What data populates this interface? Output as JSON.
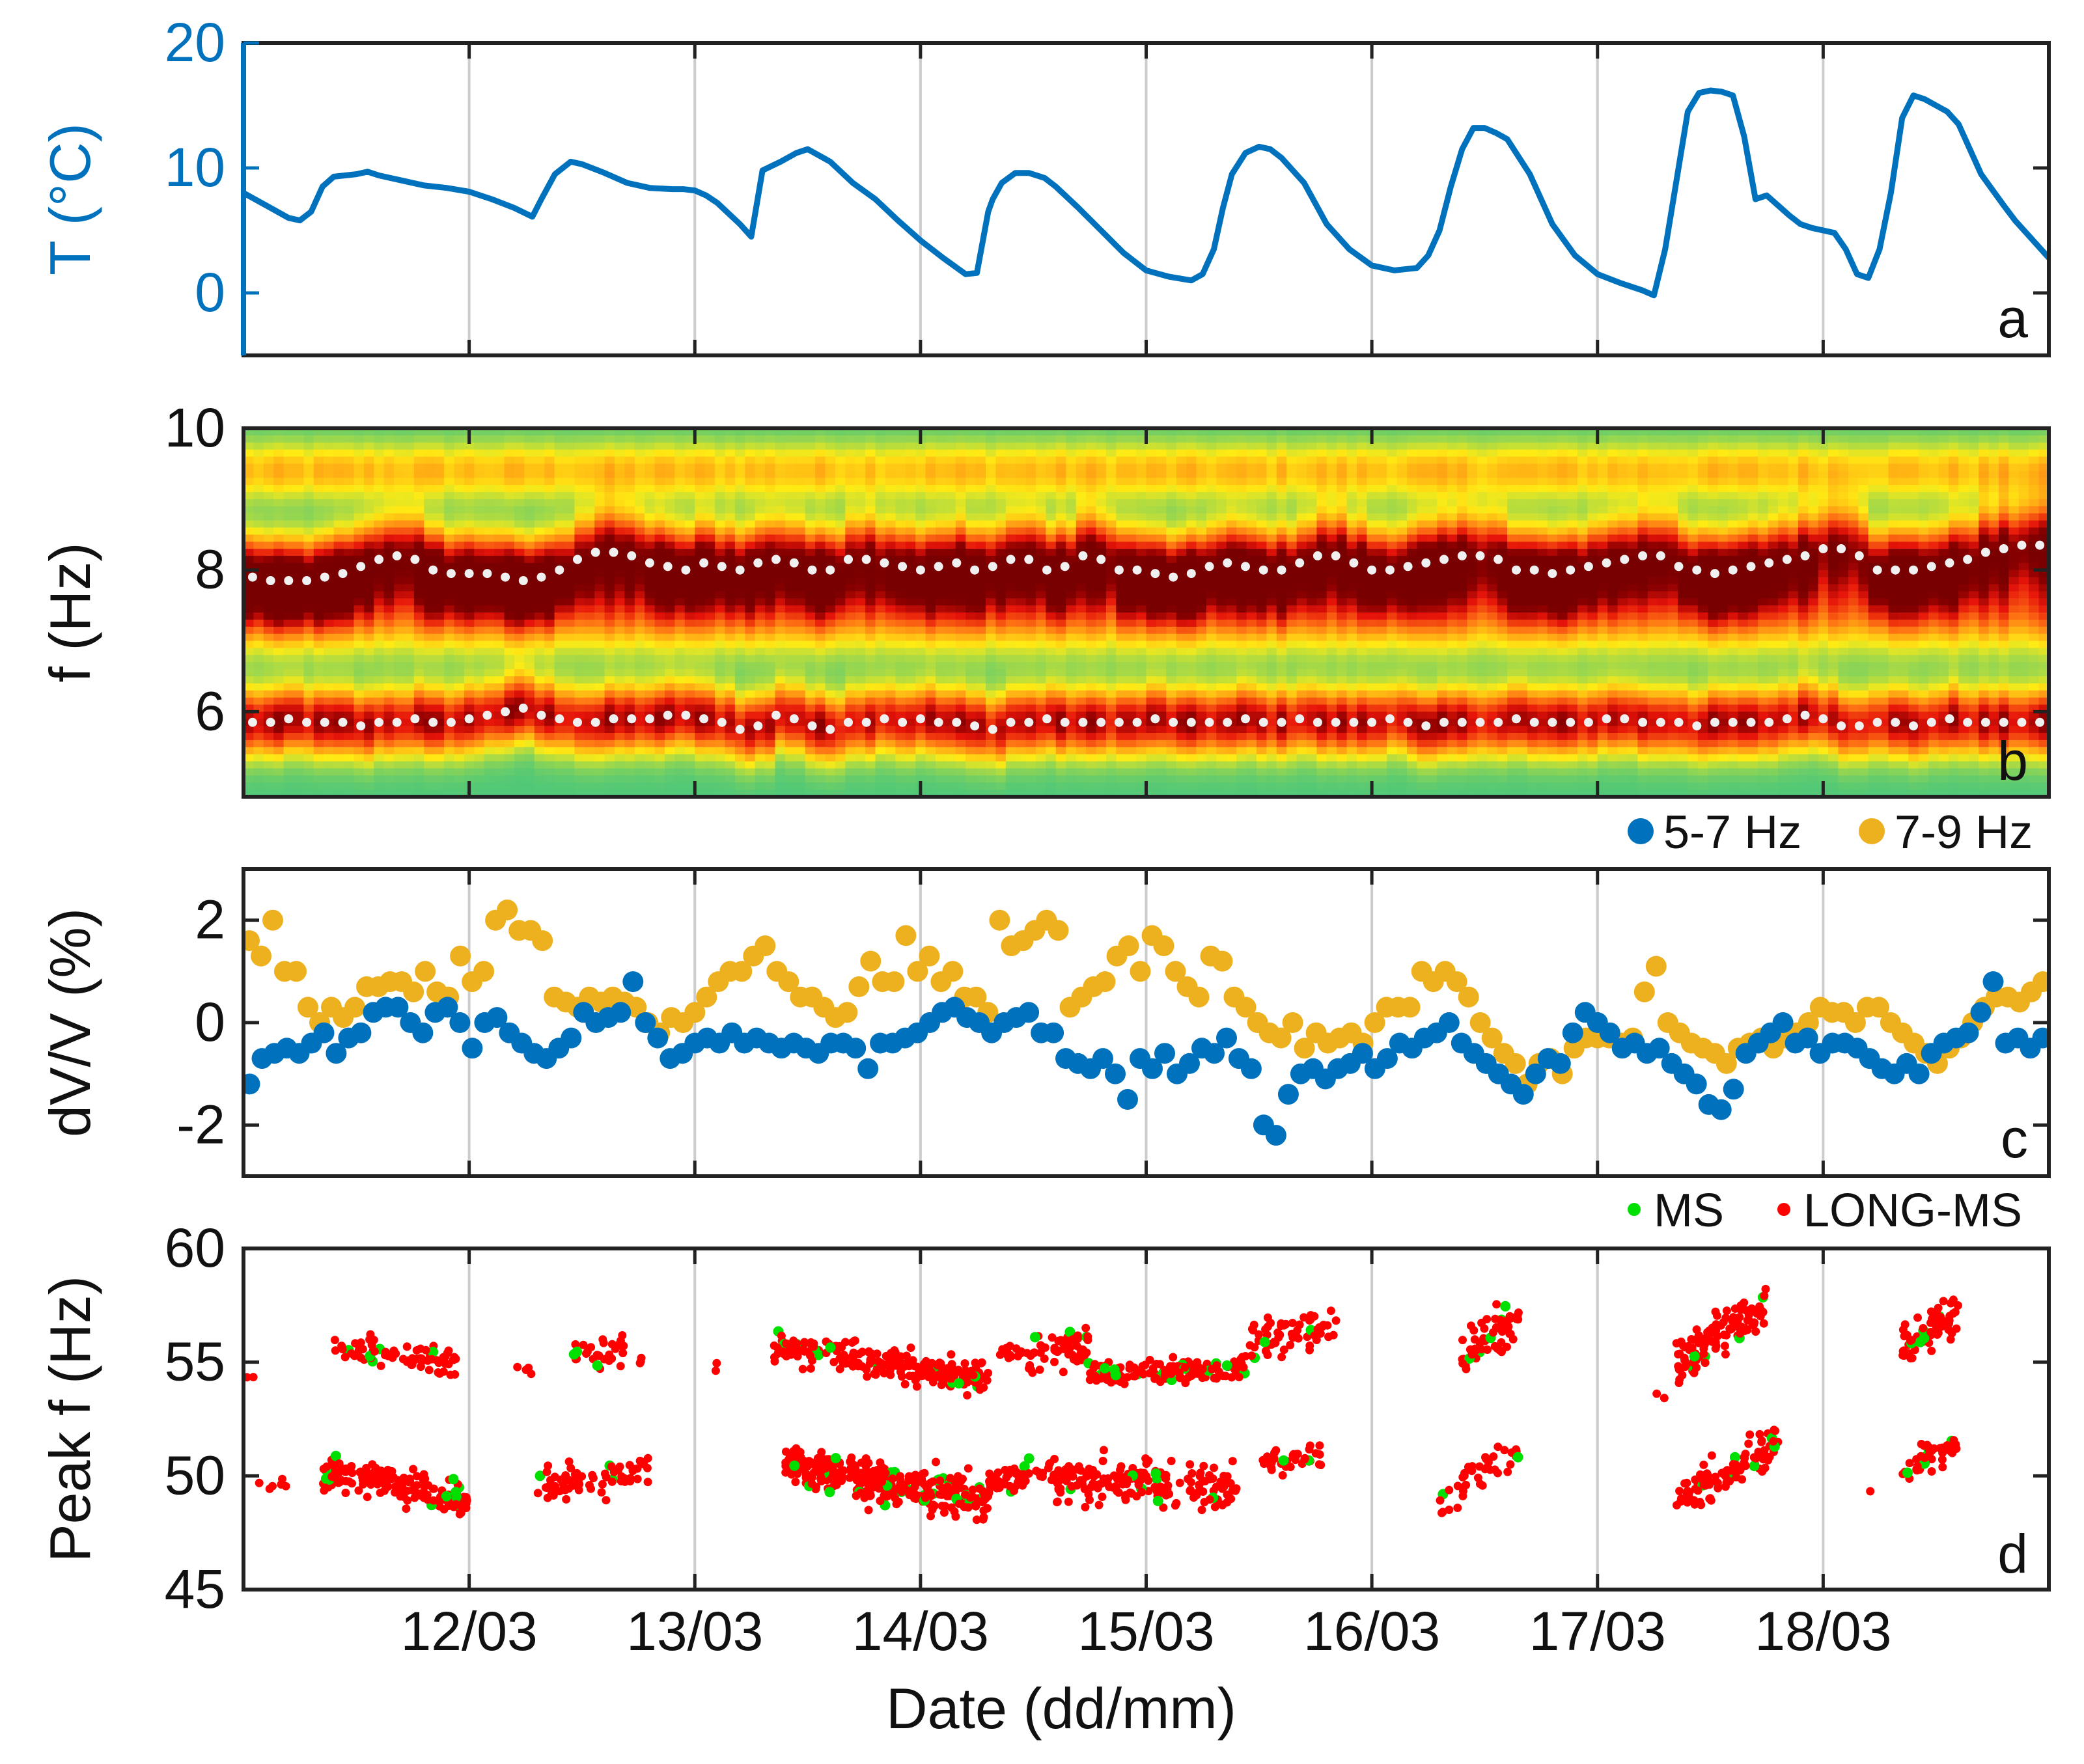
{
  "figure": {
    "xlabel": "Date (dd/mm)",
    "xticks": [
      "12/03",
      "13/03",
      "14/03",
      "15/03",
      "16/03",
      "17/03",
      "18/03"
    ],
    "day_range": [
      11.0,
      19.0
    ]
  },
  "colors": {
    "temperature": "#0072BD",
    "band_5_7": "#0072BD",
    "band_7_9": "#EDB120",
    "ms": "#00E000",
    "long_ms": "#FF0000",
    "grid": "#cccccc",
    "axis": "#222222"
  },
  "chart_data": [
    {
      "panel": "a",
      "type": "line",
      "ylabel": "T (°C)",
      "ylim": [
        -5,
        20
      ],
      "yticks": [
        0,
        10,
        20
      ],
      "series": [
        {
          "name": "Temperature",
          "x": [
            11.0,
            11.1,
            11.2,
            11.25,
            11.3,
            11.35,
            11.4,
            11.45,
            11.5,
            11.55,
            11.6,
            11.7,
            11.8,
            11.9,
            12.0,
            12.1,
            12.2,
            12.28,
            12.32,
            12.38,
            12.45,
            12.5,
            12.6,
            12.7,
            12.8,
            12.9,
            12.95,
            13.0,
            13.05,
            13.1,
            13.2,
            13.25,
            13.3,
            13.38,
            13.45,
            13.5,
            13.6,
            13.7,
            13.8,
            13.9,
            14.0,
            14.1,
            14.2,
            14.25,
            14.3,
            14.32,
            14.36,
            14.42,
            14.48,
            14.55,
            14.6,
            14.7,
            14.8,
            14.9,
            15.0,
            15.1,
            15.2,
            15.25,
            15.3,
            15.34,
            15.38,
            15.44,
            15.5,
            15.55,
            15.6,
            15.7,
            15.8,
            15.9,
            16.0,
            16.1,
            16.2,
            16.25,
            16.3,
            16.35,
            16.4,
            16.45,
            16.5,
            16.55,
            16.6,
            16.7,
            16.8,
            16.9,
            17.0,
            17.1,
            17.2,
            17.25,
            17.3,
            17.35,
            17.4,
            17.45,
            17.5,
            17.55,
            17.6,
            17.65,
            17.7,
            17.75,
            17.8,
            17.85,
            17.9,
            17.95,
            18.0,
            18.05,
            18.1,
            18.15,
            18.2,
            18.25,
            18.3,
            18.35,
            18.4,
            18.45,
            18.5,
            18.55,
            18.6,
            18.7,
            18.8,
            18.85,
            18.9,
            19.0
          ],
          "y": [
            8,
            7,
            6,
            5.8,
            6.5,
            8.5,
            9.3,
            9.4,
            9.5,
            9.7,
            9.4,
            9.0,
            8.6,
            8.4,
            8.1,
            7.5,
            6.8,
            6.1,
            7.5,
            9.5,
            10.5,
            10.3,
            9.6,
            8.8,
            8.4,
            8.3,
            8.3,
            8.2,
            7.8,
            7.2,
            5.5,
            4.5,
            9.8,
            10.5,
            11.2,
            11.5,
            10.5,
            8.8,
            7.5,
            5.8,
            4.2,
            2.8,
            1.5,
            1.6,
            6.5,
            7.5,
            8.8,
            9.6,
            9.6,
            9.2,
            8.5,
            6.8,
            5.0,
            3.2,
            1.8,
            1.3,
            1.0,
            1.5,
            3.5,
            6.8,
            9.5,
            11.2,
            11.7,
            11.5,
            10.8,
            8.8,
            5.5,
            3.5,
            2.2,
            1.8,
            2.0,
            3.0,
            5.0,
            8.5,
            11.5,
            13.2,
            13.2,
            12.8,
            12.3,
            9.5,
            5.5,
            3.0,
            1.5,
            0.8,
            0.2,
            -0.2,
            3.5,
            9.0,
            14.5,
            16.0,
            16.2,
            16.1,
            15.8,
            12.5,
            7.5,
            7.8,
            7.0,
            6.2,
            5.5,
            5.2,
            5.0,
            4.8,
            3.5,
            1.5,
            1.2,
            3.5,
            8.0,
            14.0,
            15.8,
            15.5,
            15.0,
            14.5,
            13.5,
            9.5,
            7.0,
            5.8,
            4.8,
            2.8
          ]
        }
      ],
      "annotation": "a"
    },
    {
      "panel": "b",
      "type": "heatmap",
      "ylabel": "f (Hz)",
      "ylim": [
        4.8,
        10
      ],
      "yticks": [
        6,
        8,
        10
      ],
      "colorscale": "spectral (green-yellow-red-darkred)",
      "series": [
        {
          "name": "peak 7-9 Hz",
          "values": [
            7.9,
            7.85,
            7.85,
            7.85,
            7.9,
            7.95,
            8.05,
            8.15,
            8.2,
            8.15,
            8.0,
            7.95,
            7.95,
            7.95,
            7.9,
            7.85,
            7.9,
            8.0,
            8.15,
            8.25,
            8.25,
            8.2,
            8.1,
            8.05,
            8.0,
            8.1,
            8.05,
            8.0,
            8.1,
            8.15,
            8.1,
            8.0,
            8.0,
            8.15,
            8.15,
            8.1,
            8.05,
            8.0,
            8.05,
            8.1,
            8.0,
            8.05,
            8.15,
            8.15,
            8.0,
            8.05,
            8.2,
            8.15,
            8.0,
            8.0,
            7.95,
            7.9,
            7.95,
            8.05,
            8.1,
            8.05,
            8.0,
            8.0,
            8.1,
            8.2,
            8.2,
            8.1,
            8.0,
            8.0,
            8.05,
            8.1,
            8.15,
            8.2,
            8.2,
            8.15,
            8.0,
            8.0,
            7.95,
            8.0,
            8.05,
            8.1,
            8.15,
            8.2,
            8.2,
            8.05,
            8.0,
            7.95,
            8.0,
            8.05,
            8.1,
            8.15,
            8.2,
            8.3,
            8.3,
            8.2,
            8.0,
            8.0,
            8.0,
            8.05,
            8.1,
            8.15,
            8.25,
            8.3,
            8.35,
            8.35
          ]
        },
        {
          "name": "peak 5-7 Hz",
          "values": [
            5.85,
            5.85,
            5.9,
            5.85,
            5.85,
            5.85,
            5.8,
            5.85,
            5.85,
            5.9,
            5.85,
            5.85,
            5.9,
            5.95,
            6.0,
            6.05,
            5.95,
            5.9,
            5.85,
            5.85,
            5.9,
            5.9,
            5.9,
            5.95,
            5.95,
            5.9,
            5.85,
            5.75,
            5.8,
            5.95,
            5.9,
            5.8,
            5.75,
            5.85,
            5.85,
            5.9,
            5.85,
            5.9,
            5.85,
            5.85,
            5.8,
            5.75,
            5.85,
            5.85,
            5.9,
            5.85,
            5.85,
            5.85,
            5.85,
            5.85,
            5.9,
            5.85,
            5.85,
            5.85,
            5.85,
            5.9,
            5.85,
            5.85,
            5.9,
            5.85,
            5.85,
            5.85,
            5.85,
            5.9,
            5.85,
            5.8,
            5.85,
            5.85,
            5.85,
            5.85,
            5.9,
            5.85,
            5.85,
            5.85,
            5.85,
            5.9,
            5.9,
            5.85,
            5.85,
            5.85,
            5.8,
            5.85,
            5.85,
            5.85,
            5.85,
            5.9,
            5.95,
            5.9,
            5.8,
            5.8,
            5.85,
            5.85,
            5.8,
            5.85,
            5.9,
            5.85,
            5.85,
            5.85,
            5.85,
            5.85
          ]
        }
      ],
      "annotation": "b"
    },
    {
      "panel": "c",
      "type": "scatter",
      "ylabel": "dV/V (%)",
      "ylim": [
        -3,
        3
      ],
      "yticks": [
        -2,
        0,
        2
      ],
      "legend": [
        "5-7 Hz",
        "7-9 Hz"
      ],
      "series": [
        {
          "name": "5-7 Hz",
          "values": [
            -1.2,
            -0.7,
            -0.6,
            -0.5,
            -0.6,
            -0.4,
            -0.2,
            -0.6,
            -0.3,
            -0.2,
            0.2,
            0.3,
            0.3,
            0.0,
            -0.2,
            0.2,
            0.3,
            0.0,
            -0.5,
            0.0,
            0.1,
            -0.2,
            -0.4,
            -0.6,
            -0.7,
            -0.5,
            -0.3,
            0.2,
            0.0,
            0.1,
            0.2,
            0.8,
            0.0,
            -0.3,
            -0.7,
            -0.6,
            -0.4,
            -0.3,
            -0.4,
            -0.2,
            -0.4,
            -0.3,
            -0.4,
            -0.5,
            -0.4,
            -0.5,
            -0.6,
            -0.4,
            -0.4,
            -0.5,
            -0.9,
            -0.4,
            -0.4,
            -0.3,
            -0.2,
            0.0,
            0.2,
            0.3,
            0.1,
            0.0,
            -0.2,
            0.0,
            0.1,
            0.2,
            -0.2,
            -0.2,
            -0.7,
            -0.8,
            -0.9,
            -0.7,
            -1.0,
            -1.5,
            -0.7,
            -0.9,
            -0.6,
            -1.0,
            -0.8,
            -0.5,
            -0.6,
            -0.3,
            -0.7,
            -0.9,
            -2.0,
            -2.2,
            -1.4,
            -1.0,
            -0.9,
            -1.1,
            -0.9,
            -0.8,
            -0.6,
            -0.9,
            -0.7,
            -0.4,
            -0.5,
            -0.3,
            -0.2,
            0.0,
            -0.4,
            -0.6,
            -0.8,
            -1.0,
            -1.2,
            -1.4,
            -1.0,
            -0.7,
            -0.8,
            -0.2,
            0.2,
            0.0,
            -0.2,
            -0.5,
            -0.4,
            -0.6,
            -0.5,
            -0.8,
            -1.0,
            -1.2,
            -1.6,
            -1.7,
            -1.3,
            -0.6,
            -0.4,
            -0.2,
            0.0,
            -0.4,
            -0.3,
            -0.6,
            -0.4,
            -0.4,
            -0.5,
            -0.7,
            -0.9,
            -1.0,
            -0.8,
            -1.0,
            -0.6,
            -0.4,
            -0.3,
            -0.2,
            0.2,
            0.8,
            -0.4,
            -0.3,
            -0.5,
            -0.3
          ]
        },
        {
          "name": "7-9 Hz",
          "values": [
            1.6,
            1.3,
            2.0,
            1.0,
            1.0,
            0.3,
            0.0,
            0.3,
            0.1,
            0.3,
            0.7,
            0.7,
            0.8,
            0.8,
            0.6,
            1.0,
            0.6,
            0.5,
            1.3,
            0.8,
            1.0,
            2.0,
            2.2,
            1.8,
            1.8,
            1.6,
            0.5,
            0.4,
            0.3,
            0.5,
            0.4,
            0.5,
            0.4,
            0.3,
            0.0,
            -0.2,
            0.1,
            0.0,
            0.2,
            0.5,
            0.8,
            1.0,
            1.0,
            1.3,
            1.5,
            1.0,
            0.8,
            0.5,
            0.5,
            0.3,
            0.1,
            0.2,
            0.7,
            1.2,
            0.8,
            0.8,
            1.7,
            1.0,
            1.3,
            0.8,
            1.0,
            0.5,
            0.5,
            0.2,
            2.0,
            1.5,
            1.6,
            1.8,
            2.0,
            1.8,
            0.3,
            0.5,
            0.7,
            0.8,
            1.3,
            1.5,
            1.0,
            1.7,
            1.5,
            1.0,
            0.7,
            0.5,
            1.3,
            1.2,
            0.5,
            0.3,
            0.0,
            -0.2,
            -0.3,
            0.0,
            -0.5,
            -0.2,
            -0.4,
            -0.3,
            -0.2,
            -0.4,
            0.0,
            0.3,
            0.3,
            0.3,
            1.0,
            0.8,
            1.0,
            0.8,
            0.5,
            0.0,
            -0.3,
            -0.6,
            -0.8,
            -1.2,
            -0.8,
            -0.7,
            -1.0,
            -0.5,
            -0.3,
            -0.3,
            -0.3,
            -0.4,
            -0.3,
            0.6,
            1.1,
            0.0,
            -0.2,
            -0.4,
            -0.5,
            -0.6,
            -0.8,
            -0.5,
            -0.4,
            -0.3,
            -0.5,
            -0.3,
            -0.2,
            0.0,
            0.3,
            0.2,
            0.2,
            0.0,
            0.3,
            0.3,
            0.0,
            -0.2,
            -0.4,
            -0.6,
            -0.8,
            -0.5,
            -0.3,
            0.0,
            0.3,
            0.5,
            0.5,
            0.4,
            0.6,
            0.8
          ]
        }
      ],
      "annotation": "c"
    },
    {
      "panel": "d",
      "type": "scatter",
      "ylabel": "Peak f (Hz)",
      "ylim": [
        45,
        60
      ],
      "yticks": [
        45,
        50,
        55,
        60
      ],
      "legend": [
        "MS",
        "LONG-MS"
      ],
      "clusters": [
        {
          "t0": 11.0,
          "t1": 11.06,
          "f0": 54.3,
          "f1": 54.3,
          "n": 2,
          "spread": 0.2
        },
        {
          "t0": 11.4,
          "t1": 11.95,
          "f0": 55.6,
          "f1": 55.0,
          "n": 70,
          "spread": 0.45
        },
        {
          "t0": 12.2,
          "t1": 12.3,
          "f0": 54.6,
          "f1": 54.6,
          "n": 4,
          "spread": 0.2
        },
        {
          "t0": 12.45,
          "t1": 12.7,
          "f0": 55.4,
          "f1": 55.6,
          "n": 30,
          "spread": 0.5
        },
        {
          "t0": 12.75,
          "t1": 12.8,
          "f0": 55.1,
          "f1": 55.1,
          "n": 3,
          "spread": 0.3
        },
        {
          "t0": 13.05,
          "t1": 13.1,
          "f0": 54.9,
          "f1": 54.9,
          "n": 2,
          "spread": 0.2
        },
        {
          "t0": 13.35,
          "t1": 14.3,
          "f0": 55.8,
          "f1": 54.2,
          "n": 220,
          "spread": 0.5
        },
        {
          "t0": 14.35,
          "t1": 14.75,
          "f0": 55.2,
          "f1": 55.6,
          "n": 70,
          "spread": 0.6
        },
        {
          "t0": 14.75,
          "t1": 15.45,
          "f0": 54.4,
          "f1": 54.8,
          "n": 150,
          "spread": 0.35
        },
        {
          "t0": 15.45,
          "t1": 15.85,
          "f0": 55.8,
          "f1": 56.8,
          "n": 60,
          "spread": 0.6
        },
        {
          "t0": 16.4,
          "t1": 16.65,
          "f0": 55.5,
          "f1": 56.8,
          "n": 60,
          "spread": 0.6
        },
        {
          "t0": 17.25,
          "t1": 17.3,
          "f0": 53.5,
          "f1": 53.5,
          "n": 2,
          "spread": 0.3
        },
        {
          "t0": 17.35,
          "t1": 17.75,
          "f0": 55.0,
          "f1": 57.5,
          "n": 110,
          "spread": 0.7
        },
        {
          "t0": 18.35,
          "t1": 18.6,
          "f0": 55.5,
          "f1": 57.5,
          "n": 60,
          "spread": 0.7
        },
        {
          "t0": 11.0,
          "t1": 11.2,
          "f0": 49.6,
          "f1": 49.6,
          "n": 6,
          "spread": 0.3
        },
        {
          "t0": 11.35,
          "t1": 12.0,
          "f0": 50.3,
          "f1": 48.9,
          "n": 160,
          "spread": 0.55
        },
        {
          "t0": 12.3,
          "t1": 12.8,
          "f0": 49.7,
          "f1": 50.2,
          "n": 70,
          "spread": 0.5
        },
        {
          "t0": 13.4,
          "t1": 14.3,
          "f0": 50.5,
          "f1": 48.9,
          "n": 320,
          "spread": 0.6
        },
        {
          "t0": 14.3,
          "t1": 14.6,
          "f0": 49.7,
          "f1": 50.3,
          "n": 50,
          "spread": 0.5
        },
        {
          "t0": 14.6,
          "t1": 15.4,
          "f0": 49.8,
          "f1": 49.5,
          "n": 180,
          "spread": 0.7
        },
        {
          "t0": 15.5,
          "t1": 15.8,
          "f0": 50.7,
          "f1": 50.9,
          "n": 40,
          "spread": 0.4
        },
        {
          "t0": 16.3,
          "t1": 16.65,
          "f0": 49.0,
          "f1": 51.2,
          "n": 40,
          "spread": 0.6
        },
        {
          "t0": 17.35,
          "t1": 17.8,
          "f0": 49.0,
          "f1": 51.4,
          "n": 110,
          "spread": 0.6
        },
        {
          "t0": 18.2,
          "t1": 18.22,
          "f0": 49.2,
          "f1": 49.2,
          "n": 1,
          "spread": 0.1
        },
        {
          "t0": 18.35,
          "t1": 18.6,
          "f0": 50.3,
          "f1": 51.5,
          "n": 50,
          "spread": 0.45
        }
      ],
      "annotation": "d"
    }
  ]
}
